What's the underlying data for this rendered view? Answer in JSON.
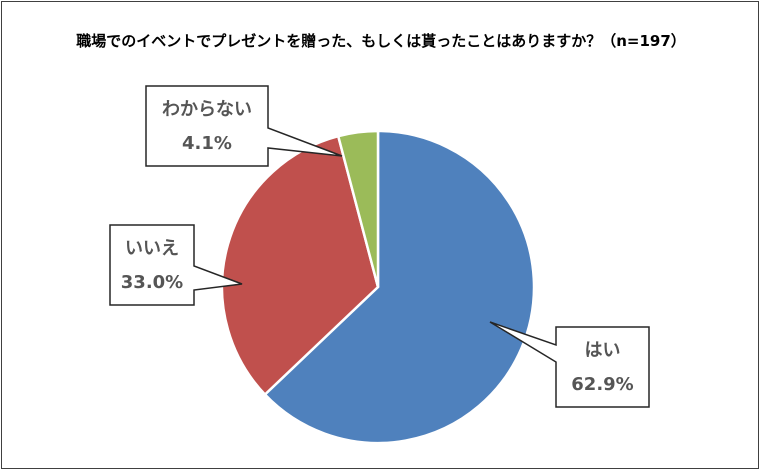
{
  "chart_data": {
    "type": "pie",
    "title": "職場でのイベントでプレゼントを贈った、もしくは貰ったことはありますか？（n=197）",
    "slices": [
      {
        "label": "はい",
        "value": 62.9,
        "value_label": "62.9%",
        "color": "#4f81bd"
      },
      {
        "label": "いいえ",
        "value": 33.0,
        "value_label": "33.0%",
        "color": "#c0504d"
      },
      {
        "label": "わからない",
        "value": 4.1,
        "value_label": "4.1%",
        "color": "#9bbb59"
      }
    ],
    "start_angle_deg": 0,
    "direction": "clockwise",
    "legend": "none"
  }
}
